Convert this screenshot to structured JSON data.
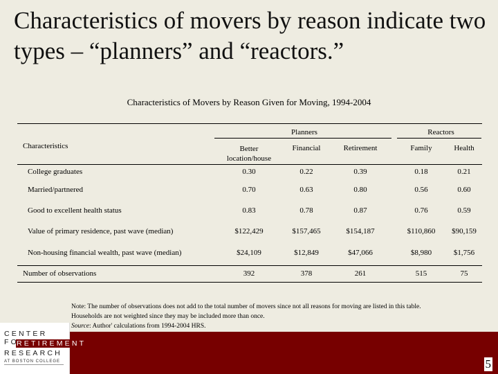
{
  "slide": {
    "title": "Characteristics of movers by reason indicate two types – “planners” and “reactors.”",
    "page_number": "5"
  },
  "table": {
    "caption": "Characteristics of Movers by Reason Given for Moving, 1994-2004",
    "group_headers": {
      "planners": "Planners",
      "reactors": "Reactors"
    },
    "stub_header": "Characteristics",
    "columns": [
      "Better location/house",
      "Financial",
      "Retirement",
      "Family",
      "Health"
    ],
    "rows": [
      {
        "label": "College graduates",
        "values": [
          "0.30",
          "0.22",
          "0.39",
          "0.18",
          "0.21"
        ]
      },
      {
        "label": "Married/partnered",
        "values": [
          "0.70",
          "0.63",
          "0.80",
          "0.56",
          "0.60"
        ]
      },
      {
        "label": "Good to excellent health status",
        "values": [
          "0.83",
          "0.78",
          "0.87",
          "0.76",
          "0.59"
        ]
      },
      {
        "label": "Value of primary residence, past wave (median)",
        "values": [
          "$122,429",
          "$157,465",
          "$154,187",
          "$110,860",
          "$90,159"
        ]
      },
      {
        "label": "Non-housing financial wealth, past wave (median)",
        "values": [
          "$24,109",
          "$12,849",
          "$47,066",
          "$8,980",
          "$1,756"
        ]
      },
      {
        "label": "Number of observations",
        "values": [
          "392",
          "378",
          "261",
          "515",
          "75"
        ]
      }
    ]
  },
  "note": {
    "line1": "Note: The number of observations does not add to the total number of movers since not all reasons for moving are listed in this table.",
    "line2": "Households are not weighted since they may be included more than once.",
    "source_label": "Source",
    "source_text": ": Author' calculations from 1994-2004 HRS."
  },
  "logo": {
    "line1": "CENTER FOR",
    "line2": "RETIREMENT",
    "line3": "RESEARCH",
    "line4": "AT BOSTON COLLEGE"
  },
  "colors": {
    "background": "#eeece1",
    "accent": "#770000"
  }
}
